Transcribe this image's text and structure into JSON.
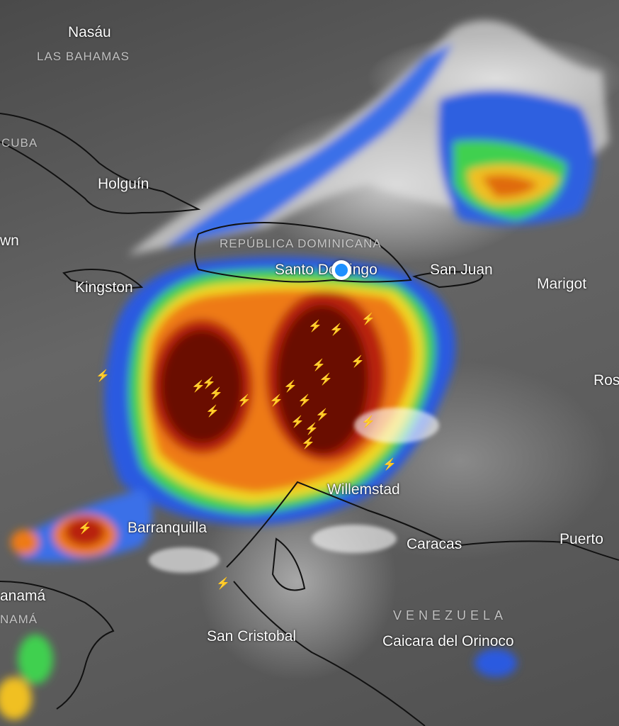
{
  "map": {
    "type": "infrared satellite",
    "colors": {
      "background_gray": "#5a5a5a",
      "cold_top_dark": "#5a0a05",
      "red": "#c0200a",
      "orange": "#f07a10",
      "yellow": "#f0e020",
      "green": "#40d040",
      "cyan": "#30c0f0",
      "blue": "#2050e0",
      "location_dot": "#1e90ff",
      "lightning": "#e8b8e8"
    },
    "cities": [
      {
        "name": "Nasáu"
      },
      {
        "name": "Holguín"
      },
      {
        "name": "wn"
      },
      {
        "name": "Kingston"
      },
      {
        "name": "Santo Domingo"
      },
      {
        "name": "San Juan"
      },
      {
        "name": "Marigot"
      },
      {
        "name": "Ros"
      },
      {
        "name": "Willemstad"
      },
      {
        "name": "Barranquilla"
      },
      {
        "name": "Caracas"
      },
      {
        "name": "Puerto"
      },
      {
        "name": "anamá"
      },
      {
        "name": "San Cristobal"
      },
      {
        "name": "Caicara del Orinoco"
      }
    ],
    "countries": [
      {
        "name": "LAS BAHAMAS"
      },
      {
        "name": "CUBA"
      },
      {
        "name": "REPÚBLICA DOMINICANA"
      },
      {
        "name": "NAMÁ"
      },
      {
        "name": "VENEZUELA"
      }
    ],
    "current_location_icon": "location-dot-icon",
    "lightning_icon": "lightning-bolt-icon"
  }
}
